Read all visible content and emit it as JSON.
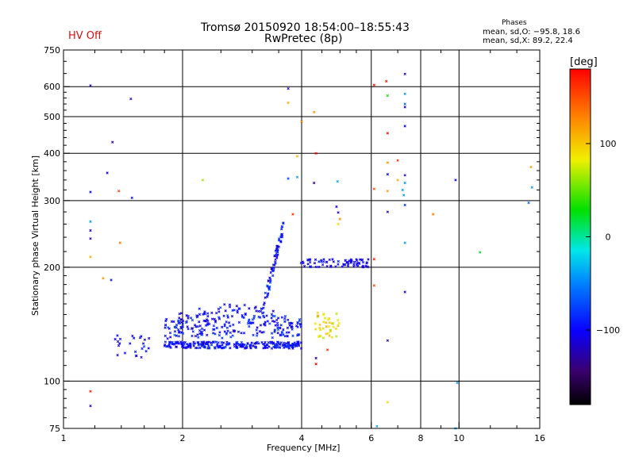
{
  "header": {
    "title_line1": "Tromsø 20150920 18:54:00–18:55:43",
    "title_line2": "RwPretec (8p)",
    "hv_status": "HV Off",
    "stats_title": "Phases",
    "stats_line1": "mean, sd,O: −95.8, 18.6",
    "stats_line2": "mean, sd,X:  89.2, 22.4"
  },
  "colorbar": {
    "label": "[deg]",
    "range": [
      -180,
      180
    ],
    "ticks": [
      100,
      0,
      -100
    ],
    "tick_labels": [
      "100",
      "0",
      "−100"
    ]
  },
  "chart_data": {
    "type": "scatter",
    "title": "Tromsø 20150920 18:54:00–18:55:43",
    "subtitle": "RwPretec (8p)",
    "xlabel": "Frequency [MHz]",
    "ylabel": "Stationary phase Virtual Height [km]",
    "xscale": "log",
    "yscale": "log",
    "xlim": [
      1,
      16
    ],
    "ylim": [
      75,
      750
    ],
    "grid": true,
    "x_ticks": [
      1,
      2,
      4,
      6,
      8,
      10,
      16
    ],
    "x_tick_labels": [
      "1",
      "2",
      "4",
      "6",
      "8",
      "10",
      "16"
    ],
    "x_grid": [
      2,
      4,
      6,
      8,
      10
    ],
    "y_ticks": [
      75,
      100,
      200,
      300,
      400,
      500,
      600,
      750
    ],
    "y_tick_labels": [
      "75",
      "100",
      "200",
      "300",
      "400",
      "500",
      "600",
      "750"
    ],
    "y_grid": [
      100,
      200,
      300,
      400,
      500,
      600
    ],
    "color_variable": "phase [deg]",
    "points": [
      {
        "x": 1.17,
        "y": 604,
        "phase": -120
      },
      {
        "x": 1.48,
        "y": 557,
        "phase": -120
      },
      {
        "x": 1.33,
        "y": 428,
        "phase": -115
      },
      {
        "x": 1.29,
        "y": 355,
        "phase": -110
      },
      {
        "x": 1.17,
        "y": 316,
        "phase": -95
      },
      {
        "x": 1.38,
        "y": 318,
        "phase": 160
      },
      {
        "x": 1.49,
        "y": 305,
        "phase": -100
      },
      {
        "x": 1.17,
        "y": 264,
        "phase": -40
      },
      {
        "x": 1.17,
        "y": 250,
        "phase": -110
      },
      {
        "x": 1.17,
        "y": 238,
        "phase": -120
      },
      {
        "x": 1.39,
        "y": 232,
        "phase": 130
      },
      {
        "x": 1.17,
        "y": 213,
        "phase": 110
      },
      {
        "x": 1.26,
        "y": 187,
        "phase": 120
      },
      {
        "x": 1.32,
        "y": 185,
        "phase": -90
      },
      {
        "x": 1.17,
        "y": 94,
        "phase": 170
      },
      {
        "x": 1.17,
        "y": 86,
        "phase": -110
      },
      {
        "x": 2.25,
        "y": 340,
        "phase": 60
      },
      {
        "x": 3.7,
        "y": 593,
        "phase": -110
      },
      {
        "x": 3.7,
        "y": 544,
        "phase": 110
      },
      {
        "x": 4.3,
        "y": 514,
        "phase": 120
      },
      {
        "x": 4.0,
        "y": 485,
        "phase": 120
      },
      {
        "x": 4.35,
        "y": 400,
        "phase": 180
      },
      {
        "x": 3.9,
        "y": 393,
        "phase": 110
      },
      {
        "x": 3.7,
        "y": 343,
        "phase": -70
      },
      {
        "x": 3.9,
        "y": 346,
        "phase": -40
      },
      {
        "x": 4.3,
        "y": 334,
        "phase": -140
      },
      {
        "x": 3.8,
        "y": 276,
        "phase": 160
      },
      {
        "x": 4.93,
        "y": 337,
        "phase": -40
      },
      {
        "x": 4.9,
        "y": 289,
        "phase": -110
      },
      {
        "x": 4.95,
        "y": 279,
        "phase": -110
      },
      {
        "x": 5.0,
        "y": 268,
        "phase": 120
      },
      {
        "x": 4.95,
        "y": 260,
        "phase": 90
      },
      {
        "x": 6.1,
        "y": 606,
        "phase": 175
      },
      {
        "x": 6.55,
        "y": 620,
        "phase": 170
      },
      {
        "x": 7.3,
        "y": 648,
        "phase": -110
      },
      {
        "x": 6.6,
        "y": 568,
        "phase": 30
      },
      {
        "x": 7.3,
        "y": 574,
        "phase": -40
      },
      {
        "x": 7.3,
        "y": 540,
        "phase": -60
      },
      {
        "x": 7.3,
        "y": 530,
        "phase": -110
      },
      {
        "x": 7.3,
        "y": 472,
        "phase": -100
      },
      {
        "x": 6.6,
        "y": 452,
        "phase": 175
      },
      {
        "x": 6.6,
        "y": 378,
        "phase": 120
      },
      {
        "x": 7.0,
        "y": 383,
        "phase": 160
      },
      {
        "x": 6.6,
        "y": 352,
        "phase": -100
      },
      {
        "x": 7.0,
        "y": 340,
        "phase": 110
      },
      {
        "x": 7.3,
        "y": 350,
        "phase": -110
      },
      {
        "x": 7.3,
        "y": 334,
        "phase": -40
      },
      {
        "x": 6.1,
        "y": 322,
        "phase": 150
      },
      {
        "x": 6.6,
        "y": 318,
        "phase": 120
      },
      {
        "x": 7.2,
        "y": 320,
        "phase": -40
      },
      {
        "x": 7.25,
        "y": 310,
        "phase": -40
      },
      {
        "x": 7.3,
        "y": 292,
        "phase": -80
      },
      {
        "x": 6.6,
        "y": 280,
        "phase": -120
      },
      {
        "x": 8.6,
        "y": 276,
        "phase": 130
      },
      {
        "x": 7.3,
        "y": 232,
        "phase": -40
      },
      {
        "x": 9.8,
        "y": 340,
        "phase": -100
      },
      {
        "x": 11.3,
        "y": 219,
        "phase": 20
      },
      {
        "x": 15.2,
        "y": 368,
        "phase": 120
      },
      {
        "x": 15.3,
        "y": 325,
        "phase": -40
      },
      {
        "x": 15.0,
        "y": 296,
        "phase": -60
      },
      {
        "x": 6.1,
        "y": 210,
        "phase": 170
      },
      {
        "x": 6.1,
        "y": 179,
        "phase": 150
      },
      {
        "x": 7.3,
        "y": 172,
        "phase": -110
      },
      {
        "x": 4.35,
        "y": 115,
        "phase": -120
      },
      {
        "x": 4.35,
        "y": 111,
        "phase": 180
      },
      {
        "x": 4.65,
        "y": 121,
        "phase": 160
      },
      {
        "x": 6.6,
        "y": 128,
        "phase": -130
      },
      {
        "x": 9.9,
        "y": 99,
        "phase": -40
      },
      {
        "x": 6.6,
        "y": 88,
        "phase": 90
      },
      {
        "x": 6.2,
        "y": 76,
        "phase": -40
      },
      {
        "x": 9.8,
        "y": 75,
        "phase": -40
      }
    ],
    "clusters": [
      {
        "note": "dense O-mode trace",
        "x_range": [
          1.8,
          4.0
        ],
        "y_range": [
          122,
          160
        ],
        "phase_mean": -95.8,
        "phase_sd": 18.6,
        "count": 520
      },
      {
        "note": "low-frequency branch",
        "x_range": [
          1.35,
          1.65
        ],
        "y_range": [
          115,
          132
        ],
        "phase_mean": -100,
        "phase_sd": 15,
        "count": 24
      },
      {
        "note": "rising branch",
        "x_range": [
          3.2,
          3.6
        ],
        "y_range": [
          150,
          262
        ],
        "phase_mean": -95,
        "phase_sd": 20,
        "count": 70
      },
      {
        "note": "horizontal F-layer trace",
        "x_range": [
          3.95,
          5.9
        ],
        "y_range": [
          200,
          210
        ],
        "phase_mean": -100,
        "phase_sd": 10,
        "count": 75
      },
      {
        "note": "X-mode cluster",
        "x_range": [
          4.3,
          5.0
        ],
        "y_range": [
          130,
          152
        ],
        "phase_mean": 89.2,
        "phase_sd": 22.4,
        "count": 38
      }
    ]
  }
}
